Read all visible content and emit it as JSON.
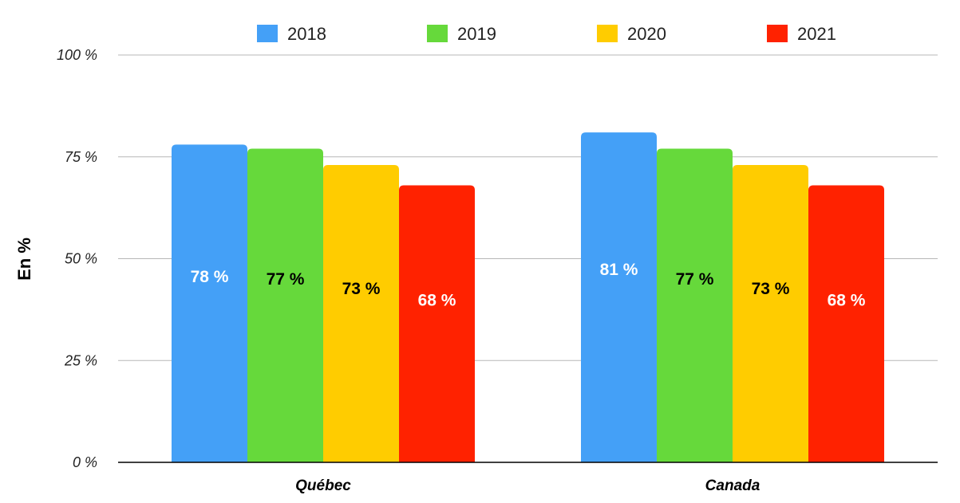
{
  "chart_data": {
    "type": "bar",
    "categories": [
      "Québec",
      "Canada"
    ],
    "series": [
      {
        "name": "2018",
        "values": [
          78,
          81
        ],
        "labels": [
          "78 %",
          "81 %"
        ],
        "color": "#44a0f7",
        "label_color": "#ffffff"
      },
      {
        "name": "2019",
        "values": [
          77,
          77
        ],
        "labels": [
          "77 %",
          "77 %"
        ],
        "color": "#66d93b",
        "label_color": "#000000"
      },
      {
        "name": "2020",
        "values": [
          73,
          73
        ],
        "labels": [
          "73 %",
          "73 %"
        ],
        "color": "#ffcc00",
        "label_color": "#000000"
      },
      {
        "name": "2021",
        "values": [
          68,
          68
        ],
        "labels": [
          "68 %",
          "68 %"
        ],
        "color": "#ff2200",
        "label_color": "#ffffff"
      }
    ],
    "ylabel": "En %",
    "xlabel": "",
    "ylim": [
      0,
      100
    ],
    "yticks": [
      0,
      25,
      50,
      75,
      100
    ],
    "ytick_labels": [
      "0 %",
      "25 %",
      "50 %",
      "75 %",
      "100 %"
    ],
    "grid": true,
    "legend": "top"
  }
}
